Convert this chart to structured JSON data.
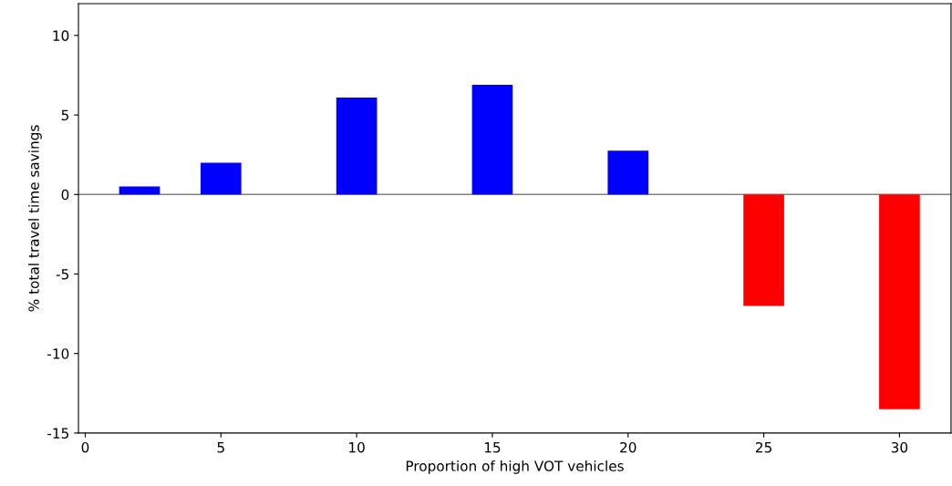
{
  "chart_data": {
    "type": "bar",
    "xlabel": "Proportion of high VOT vehicles",
    "ylabel": "% total travel time savings",
    "x": [
      2,
      5,
      10,
      15,
      20,
      25,
      30
    ],
    "values": [
      0.5,
      2.0,
      6.1,
      6.9,
      2.75,
      -7.0,
      -13.5
    ],
    "colors": [
      "#0000ff",
      "#0000ff",
      "#0000ff",
      "#0000ff",
      "#0000ff",
      "#ff0000",
      "#ff0000"
    ],
    "xlim": [
      -0.25,
      31.9
    ],
    "xticks": [
      0,
      5,
      10,
      15,
      20,
      25,
      30
    ],
    "ylim": [
      -15,
      12
    ],
    "yticks": [
      -15,
      -10,
      -5,
      0,
      5,
      10
    ],
    "ref_lines": [
      {
        "axis": "y",
        "value": 0,
        "color": "#808080"
      }
    ],
    "grid": false
  }
}
